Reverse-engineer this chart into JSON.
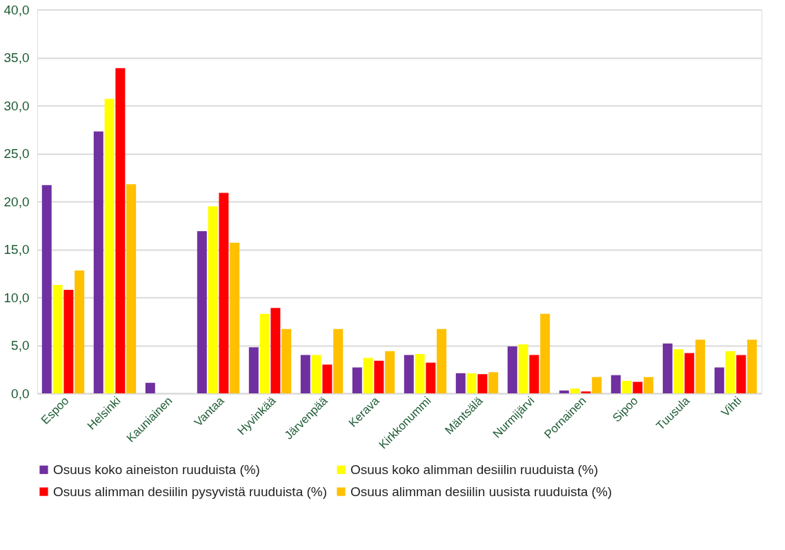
{
  "chart_data": {
    "type": "bar",
    "categories": [
      "Espoo",
      "Helsinki",
      "Kauniainen",
      "Vantaa",
      "Hyvinkää",
      "Järvenpää",
      "Kerava",
      "Kirkkonummi",
      "Mäntsälä",
      "Nurmijärvi",
      "Pornainen",
      "Sipoo",
      "Tuusula",
      "Vihti"
    ],
    "series": [
      {
        "name": "Osuus koko aineiston ruuduista (%)",
        "color": "#7030a0",
        "values": [
          21.7,
          27.3,
          1.1,
          16.9,
          4.8,
          4.0,
          2.7,
          4.0,
          2.1,
          4.9,
          0.3,
          1.9,
          5.2,
          2.7
        ]
      },
      {
        "name": "Osuus koko alimman desiilin ruuduista (%)",
        "color": "#ffff00",
        "values": [
          11.3,
          30.7,
          0,
          19.5,
          8.3,
          4.0,
          3.7,
          4.1,
          2.1,
          5.1,
          0.5,
          1.3,
          4.6,
          4.4
        ]
      },
      {
        "name": "Osuus alimman desiilin pysyvistä ruuduista (%)",
        "color": "#ff0000",
        "values": [
          10.8,
          33.9,
          0,
          20.9,
          8.9,
          3.0,
          3.4,
          3.2,
          2.0,
          4.0,
          0.2,
          1.2,
          4.2,
          4.0
        ]
      },
      {
        "name": "Osuus alimman desiilin uusista ruuduista (%)",
        "color": "#ffc000",
        "values": [
          12.8,
          21.8,
          0,
          15.7,
          6.7,
          6.7,
          4.4,
          6.7,
          2.2,
          8.3,
          1.7,
          1.7,
          5.6,
          5.6
        ]
      }
    ],
    "ylim": [
      0,
      40
    ],
    "yticks": [
      {
        "value": 0,
        "label": "0,0"
      },
      {
        "value": 5,
        "label": "5,0"
      },
      {
        "value": 10,
        "label": "10,0"
      },
      {
        "value": 15,
        "label": "15,0"
      },
      {
        "value": 20,
        "label": "20,0"
      },
      {
        "value": 25,
        "label": "25,0"
      },
      {
        "value": 30,
        "label": "30,0"
      },
      {
        "value": 35,
        "label": "35,0"
      },
      {
        "value": 40,
        "label": "40,0"
      }
    ],
    "grid": "y",
    "legend": "bottom"
  }
}
